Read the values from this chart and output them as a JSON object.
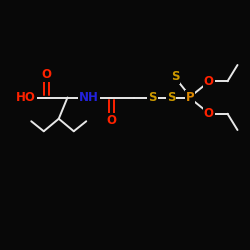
{
  "background_color": "#080808",
  "atom_colors": {
    "O": "#ff2200",
    "N": "#2222dd",
    "S": "#cc9900",
    "P": "#dd8800"
  },
  "bond_color": "#e8e8e8",
  "figsize": [
    2.5,
    2.5
  ],
  "dpi": 100,
  "layout": {
    "xlim": [
      0,
      10
    ],
    "ylim": [
      0,
      10
    ]
  }
}
